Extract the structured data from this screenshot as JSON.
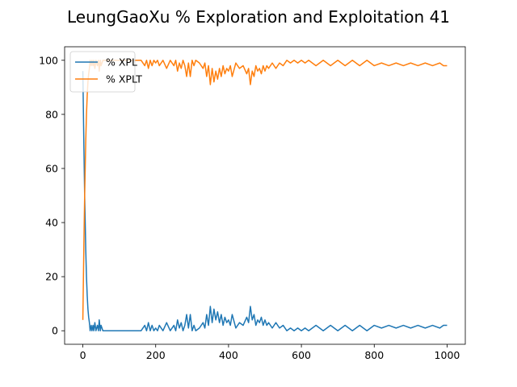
{
  "chart_data": {
    "type": "line",
    "title": "LeungGaoXu % Exploration and Exploitation 41",
    "xlabel": "",
    "ylabel": "",
    "xlim": [
      -50,
      1050
    ],
    "ylim": [
      -5,
      105
    ],
    "xticks": [
      0,
      200,
      400,
      600,
      800,
      1000
    ],
    "yticks": [
      0,
      20,
      40,
      60,
      80,
      100
    ],
    "grid": false,
    "legend": {
      "position": "top-left"
    },
    "series": [
      {
        "name": "% XPL",
        "color": "#1f77b4",
        "x": [
          0,
          3,
          5,
          8,
          10,
          12,
          14,
          16,
          18,
          20,
          23,
          25,
          28,
          30,
          33,
          36,
          40,
          43,
          45,
          48,
          50,
          55,
          60,
          70,
          80,
          100,
          130,
          160,
          170,
          175,
          180,
          185,
          190,
          195,
          200,
          205,
          210,
          220,
          230,
          240,
          250,
          255,
          260,
          265,
          270,
          275,
          280,
          285,
          290,
          295,
          300,
          305,
          310,
          320,
          330,
          335,
          340,
          345,
          350,
          355,
          360,
          365,
          370,
          375,
          380,
          385,
          390,
          395,
          400,
          405,
          410,
          420,
          430,
          440,
          450,
          455,
          460,
          465,
          470,
          475,
          480,
          485,
          490,
          495,
          500,
          505,
          510,
          520,
          530,
          540,
          550,
          560,
          570,
          580,
          590,
          600,
          610,
          620,
          640,
          660,
          680,
          700,
          720,
          740,
          760,
          780,
          800,
          820,
          840,
          860,
          880,
          900,
          920,
          940,
          960,
          980,
          990,
          1000
        ],
        "y": [
          96,
          67,
          50,
          30,
          20,
          13,
          8,
          5,
          3,
          0,
          2,
          0,
          2,
          0,
          3,
          0,
          2,
          0,
          4,
          0,
          2,
          0,
          0,
          0,
          0,
          0,
          0,
          0,
          2,
          0,
          3,
          0,
          2,
          0,
          1,
          0,
          2,
          0,
          3,
          0,
          2,
          0,
          4,
          1,
          3,
          0,
          2,
          6,
          1,
          6,
          0,
          2,
          0,
          1,
          3,
          1,
          6,
          2,
          9,
          3,
          8,
          4,
          7,
          3,
          6,
          2,
          5,
          3,
          4,
          2,
          6,
          1,
          3,
          2,
          5,
          3,
          9,
          4,
          6,
          2,
          4,
          3,
          5,
          2,
          4,
          2,
          3,
          1,
          3,
          1,
          2,
          0,
          1,
          0,
          1,
          0,
          1,
          0,
          2,
          0,
          2,
          0,
          2,
          0,
          2,
          0,
          2,
          1,
          2,
          1,
          2,
          1,
          2,
          1,
          2,
          1,
          2,
          2
        ]
      },
      {
        "name": "% XPLT",
        "color": "#ff7f0e",
        "x": [
          0,
          3,
          5,
          8,
          10,
          12,
          14,
          16,
          18,
          20,
          23,
          25,
          28,
          30,
          33,
          36,
          40,
          43,
          45,
          48,
          50,
          55,
          60,
          70,
          80,
          100,
          130,
          160,
          170,
          175,
          180,
          185,
          190,
          195,
          200,
          205,
          210,
          220,
          230,
          240,
          250,
          255,
          260,
          265,
          270,
          275,
          280,
          285,
          290,
          295,
          300,
          305,
          310,
          320,
          330,
          335,
          340,
          345,
          350,
          355,
          360,
          365,
          370,
          375,
          380,
          385,
          390,
          395,
          400,
          405,
          410,
          420,
          430,
          440,
          450,
          455,
          460,
          465,
          470,
          475,
          480,
          485,
          490,
          495,
          500,
          505,
          510,
          520,
          530,
          540,
          550,
          560,
          570,
          580,
          590,
          600,
          610,
          620,
          640,
          660,
          680,
          700,
          720,
          740,
          760,
          780,
          800,
          820,
          840,
          860,
          880,
          900,
          920,
          940,
          960,
          980,
          990,
          1000
        ],
        "y": [
          4,
          33,
          50,
          70,
          80,
          87,
          92,
          95,
          97,
          100,
          98,
          100,
          98,
          100,
          97,
          100,
          98,
          100,
          96,
          100,
          98,
          100,
          100,
          100,
          100,
          100,
          100,
          100,
          98,
          100,
          97,
          100,
          98,
          100,
          99,
          100,
          98,
          100,
          97,
          100,
          98,
          100,
          96,
          99,
          97,
          100,
          98,
          94,
          99,
          94,
          100,
          98,
          100,
          99,
          97,
          99,
          94,
          98,
          91,
          97,
          92,
          96,
          93,
          97,
          94,
          98,
          95,
          97,
          96,
          98,
          94,
          99,
          97,
          98,
          95,
          97,
          91,
          96,
          94,
          98,
          96,
          97,
          95,
          98,
          96,
          98,
          97,
          99,
          97,
          99,
          98,
          100,
          99,
          100,
          99,
          100,
          99,
          100,
          98,
          100,
          98,
          100,
          98,
          100,
          98,
          100,
          98,
          99,
          98,
          99,
          98,
          99,
          98,
          99,
          98,
          99,
          98,
          98
        ]
      }
    ]
  }
}
